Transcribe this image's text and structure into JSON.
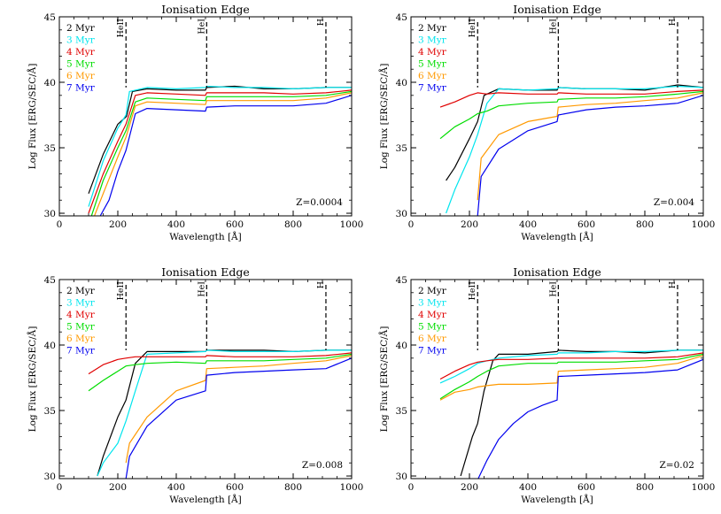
{
  "figure": {
    "xlabel": "Wavelength [Å]",
    "ylabel": "Log Flux [ERG/SEC/Å]"
  },
  "legend": [
    {
      "name": "2 Myr",
      "color": "#000000"
    },
    {
      "name": "3 Myr",
      "color": "#00e5ee"
    },
    {
      "name": "4 Myr",
      "color": "#e00000"
    },
    {
      "name": "5 Myr",
      "color": "#00dd00"
    },
    {
      "name": "6 Myr",
      "color": "#ff9900"
    },
    {
      "name": "7 Myr",
      "color": "#0000ee"
    }
  ],
  "edges": [
    {
      "label": "HeII",
      "x": 228
    },
    {
      "label": "HeI",
      "x": 504
    },
    {
      "label": "H",
      "x": 912
    }
  ],
  "chart_data": [
    {
      "type": "line",
      "title": "Ionisation Edge",
      "annotation": "Z=0.0004",
      "xlabel": "Wavelength [Å]",
      "ylabel": "Log Flux [ERG/SEC/Å]",
      "xlim": [
        0,
        1000
      ],
      "ylim": [
        29.8,
        45
      ],
      "xticks": [
        0,
        200,
        400,
        600,
        800,
        1000
      ],
      "yticks": [
        30,
        35,
        40,
        45
      ],
      "series": [
        {
          "name": "2 Myr",
          "x": [
            100,
            150,
            200,
            230,
            250,
            300,
            400,
            500,
            504,
            600,
            700,
            800,
            912,
            1000
          ],
          "y": [
            31.5,
            34.5,
            36.8,
            37.4,
            39.3,
            39.5,
            39.4,
            39.4,
            39.6,
            39.7,
            39.5,
            39.5,
            39.6,
            39.6
          ]
        },
        {
          "name": "3 Myr",
          "x": [
            100,
            150,
            200,
            228,
            240,
            300,
            400,
            500,
            504,
            600,
            700,
            800,
            912,
            1000
          ],
          "y": [
            30.5,
            34.0,
            36.5,
            37.5,
            39.3,
            39.6,
            39.5,
            39.6,
            39.7,
            39.6,
            39.6,
            39.5,
            39.6,
            39.6
          ]
        },
        {
          "name": "4 Myr",
          "x": [
            100,
            150,
            200,
            228,
            260,
            300,
            400,
            500,
            504,
            600,
            700,
            800,
            912,
            1000
          ],
          "y": [
            30.0,
            33.0,
            35.5,
            36.8,
            39.0,
            39.2,
            39.1,
            39.0,
            39.2,
            39.2,
            39.2,
            39.1,
            39.2,
            39.4
          ]
        },
        {
          "name": "5 Myr",
          "x": [
            110,
            150,
            200,
            228,
            260,
            300,
            400,
            500,
            504,
            600,
            700,
            800,
            912,
            1000
          ],
          "y": [
            29.8,
            32.5,
            35.0,
            36.3,
            38.5,
            38.8,
            38.7,
            38.6,
            38.9,
            38.9,
            38.9,
            38.9,
            39.0,
            39.3
          ]
        },
        {
          "name": "6 Myr",
          "x": [
            120,
            150,
            200,
            228,
            260,
            300,
            400,
            500,
            504,
            600,
            700,
            800,
            912,
            1000
          ],
          "y": [
            29.8,
            31.5,
            34.3,
            35.8,
            38.2,
            38.5,
            38.4,
            38.3,
            38.6,
            38.6,
            38.6,
            38.6,
            38.8,
            39.2
          ]
        },
        {
          "name": "7 Myr",
          "x": [
            140,
            170,
            200,
            228,
            260,
            300,
            400,
            500,
            504,
            600,
            700,
            800,
            912,
            1000
          ],
          "y": [
            29.8,
            31.0,
            33.2,
            34.8,
            37.6,
            38.0,
            37.9,
            37.8,
            38.1,
            38.2,
            38.2,
            38.2,
            38.4,
            39.0
          ]
        }
      ]
    },
    {
      "type": "line",
      "title": "Ionisation Edge",
      "annotation": "Z=0.004",
      "xlabel": "Wavelength [Å]",
      "ylabel": "Log Flux [ERG/SEC/Å]",
      "xlim": [
        0,
        1000
      ],
      "ylim": [
        29.8,
        45
      ],
      "xticks": [
        0,
        200,
        400,
        600,
        800,
        1000
      ],
      "yticks": [
        30,
        35,
        40,
        45
      ],
      "series": [
        {
          "name": "2 Myr",
          "x": [
            120,
            150,
            200,
            228,
            250,
            300,
            400,
            500,
            504,
            600,
            700,
            800,
            912,
            1000
          ],
          "y": [
            32.5,
            33.5,
            35.7,
            37.0,
            39.0,
            39.5,
            39.4,
            39.4,
            39.6,
            39.5,
            39.5,
            39.4,
            39.8,
            39.6
          ]
        },
        {
          "name": "3 Myr",
          "x": [
            120,
            150,
            200,
            228,
            260,
            300,
            400,
            500,
            504,
            600,
            700,
            800,
            912,
            1000
          ],
          "y": [
            30.0,
            31.8,
            34.3,
            36.0,
            38.4,
            39.5,
            39.4,
            39.5,
            39.6,
            39.5,
            39.5,
            39.5,
            39.7,
            39.6
          ]
        },
        {
          "name": "4 Myr",
          "x": [
            100,
            150,
            200,
            228,
            260,
            300,
            400,
            500,
            504,
            600,
            700,
            800,
            912,
            1000
          ],
          "y": [
            38.1,
            38.5,
            39.0,
            39.2,
            39.1,
            39.2,
            39.1,
            39.1,
            39.2,
            39.1,
            39.1,
            39.1,
            39.3,
            39.4
          ]
        },
        {
          "name": "5 Myr",
          "x": [
            100,
            150,
            200,
            228,
            260,
            300,
            400,
            500,
            504,
            600,
            700,
            800,
            912,
            1000
          ],
          "y": [
            35.7,
            36.6,
            37.2,
            37.6,
            37.8,
            38.2,
            38.4,
            38.5,
            38.7,
            38.8,
            38.8,
            38.9,
            39.1,
            39.3
          ]
        },
        {
          "name": "6 Myr",
          "x": [
            228,
            240,
            300,
            400,
            500,
            504,
            600,
            700,
            800,
            912,
            1000
          ],
          "y": [
            31.0,
            34.2,
            36.0,
            37.0,
            37.4,
            38.1,
            38.3,
            38.4,
            38.6,
            38.8,
            39.2
          ]
        },
        {
          "name": "7 Myr",
          "x": [
            228,
            240,
            300,
            400,
            500,
            504,
            600,
            700,
            800,
            912,
            1000
          ],
          "y": [
            29.8,
            32.8,
            34.9,
            36.3,
            37.0,
            37.5,
            37.9,
            38.1,
            38.2,
            38.4,
            39.0
          ]
        }
      ]
    },
    {
      "type": "line",
      "title": "Ionisation Edge",
      "annotation": "Z=0.008",
      "xlabel": "Wavelength [Å]",
      "ylabel": "Log Flux [ERG/SEC/Å]",
      "xlim": [
        0,
        1000
      ],
      "ylim": [
        29.8,
        45
      ],
      "xticks": [
        0,
        200,
        400,
        600,
        800,
        1000
      ],
      "yticks": [
        30,
        35,
        40,
        45
      ],
      "series": [
        {
          "name": "2 Myr",
          "x": [
            130,
            150,
            200,
            228,
            260,
            300,
            400,
            500,
            504,
            600,
            700,
            800,
            912,
            1000
          ],
          "y": [
            30.0,
            31.5,
            34.5,
            35.8,
            38.6,
            39.5,
            39.5,
            39.5,
            39.6,
            39.6,
            39.6,
            39.5,
            39.6,
            39.6
          ]
        },
        {
          "name": "3 Myr",
          "x": [
            130,
            150,
            200,
            228,
            260,
            300,
            400,
            500,
            504,
            600,
            700,
            800,
            912,
            1000
          ],
          "y": [
            30.0,
            31.0,
            32.5,
            34.2,
            36.5,
            39.3,
            39.4,
            39.5,
            39.6,
            39.5,
            39.5,
            39.5,
            39.6,
            39.6
          ]
        },
        {
          "name": "4 Myr",
          "x": [
            100,
            150,
            200,
            228,
            260,
            300,
            400,
            500,
            504,
            600,
            700,
            800,
            912,
            1000
          ],
          "y": [
            37.8,
            38.5,
            38.9,
            39.0,
            39.1,
            39.1,
            39.1,
            39.1,
            39.2,
            39.1,
            39.1,
            39.1,
            39.2,
            39.4
          ]
        },
        {
          "name": "5 Myr",
          "x": [
            100,
            150,
            200,
            228,
            260,
            300,
            400,
            500,
            504,
            600,
            700,
            800,
            912,
            1000
          ],
          "y": [
            36.5,
            37.3,
            38.0,
            38.4,
            38.5,
            38.6,
            38.7,
            38.6,
            38.8,
            38.8,
            38.8,
            38.9,
            39.0,
            39.3
          ]
        },
        {
          "name": "6 Myr",
          "x": [
            228,
            240,
            300,
            400,
            500,
            504,
            600,
            700,
            800,
            912,
            1000
          ],
          "y": [
            31.0,
            32.5,
            34.5,
            36.5,
            37.3,
            38.2,
            38.3,
            38.4,
            38.6,
            38.8,
            39.2
          ]
        },
        {
          "name": "7 Myr",
          "x": [
            228,
            240,
            300,
            400,
            500,
            504,
            600,
            700,
            800,
            912,
            1000
          ],
          "y": [
            29.8,
            31.5,
            33.8,
            35.8,
            36.5,
            37.7,
            37.9,
            38.0,
            38.1,
            38.2,
            39.0
          ]
        }
      ]
    },
    {
      "type": "line",
      "title": "Ionisation Edge",
      "annotation": "Z=0.02",
      "xlabel": "Wavelength [Å]",
      "ylabel": "Log Flux [ERG/SEC/Å]",
      "xlim": [
        0,
        1000
      ],
      "ylim": [
        29.8,
        45
      ],
      "xticks": [
        0,
        200,
        400,
        600,
        800,
        1000
      ],
      "yticks": [
        30,
        35,
        40,
        45
      ],
      "series": [
        {
          "name": "2 Myr",
          "x": [
            170,
            190,
            210,
            228,
            250,
            280,
            300,
            400,
            500,
            504,
            600,
            700,
            800,
            912,
            1000
          ],
          "y": [
            30.0,
            31.5,
            33.0,
            34.0,
            36.5,
            38.8,
            39.3,
            39.3,
            39.5,
            39.6,
            39.5,
            39.5,
            39.4,
            39.6,
            39.6
          ]
        },
        {
          "name": "3 Myr",
          "x": [
            100,
            150,
            200,
            228,
            260,
            300,
            400,
            500,
            504,
            600,
            700,
            800,
            912,
            1000
          ],
          "y": [
            37.1,
            37.6,
            38.2,
            38.6,
            38.8,
            39.0,
            39.2,
            39.3,
            39.4,
            39.4,
            39.5,
            39.5,
            39.6,
            39.6
          ]
        },
        {
          "name": "4 Myr",
          "x": [
            100,
            150,
            200,
            228,
            260,
            300,
            400,
            500,
            504,
            600,
            700,
            800,
            912,
            1000
          ],
          "y": [
            37.4,
            38.0,
            38.5,
            38.7,
            38.8,
            38.9,
            38.9,
            39.0,
            39.0,
            39.0,
            39.0,
            39.0,
            39.1,
            39.4
          ]
        },
        {
          "name": "5 Myr",
          "x": [
            100,
            150,
            200,
            228,
            260,
            300,
            400,
            500,
            504,
            600,
            700,
            800,
            912,
            1000
          ],
          "y": [
            35.9,
            36.6,
            37.2,
            37.6,
            38.0,
            38.4,
            38.6,
            38.6,
            38.7,
            38.7,
            38.7,
            38.8,
            38.9,
            39.3
          ]
        },
        {
          "name": "6 Myr",
          "x": [
            100,
            150,
            200,
            228,
            260,
            300,
            400,
            500,
            504,
            600,
            700,
            800,
            912,
            1000
          ],
          "y": [
            35.8,
            36.4,
            36.6,
            36.8,
            36.9,
            37.0,
            37.0,
            37.1,
            38.0,
            38.1,
            38.2,
            38.3,
            38.6,
            39.2
          ]
        },
        {
          "name": "7 Myr",
          "x": [
            230,
            260,
            300,
            350,
            400,
            450,
            500,
            504,
            600,
            700,
            800,
            912,
            1000
          ],
          "y": [
            29.8,
            31.2,
            32.8,
            34.0,
            34.9,
            35.4,
            35.8,
            37.6,
            37.7,
            37.8,
            37.9,
            38.1,
            38.9
          ]
        }
      ]
    }
  ]
}
